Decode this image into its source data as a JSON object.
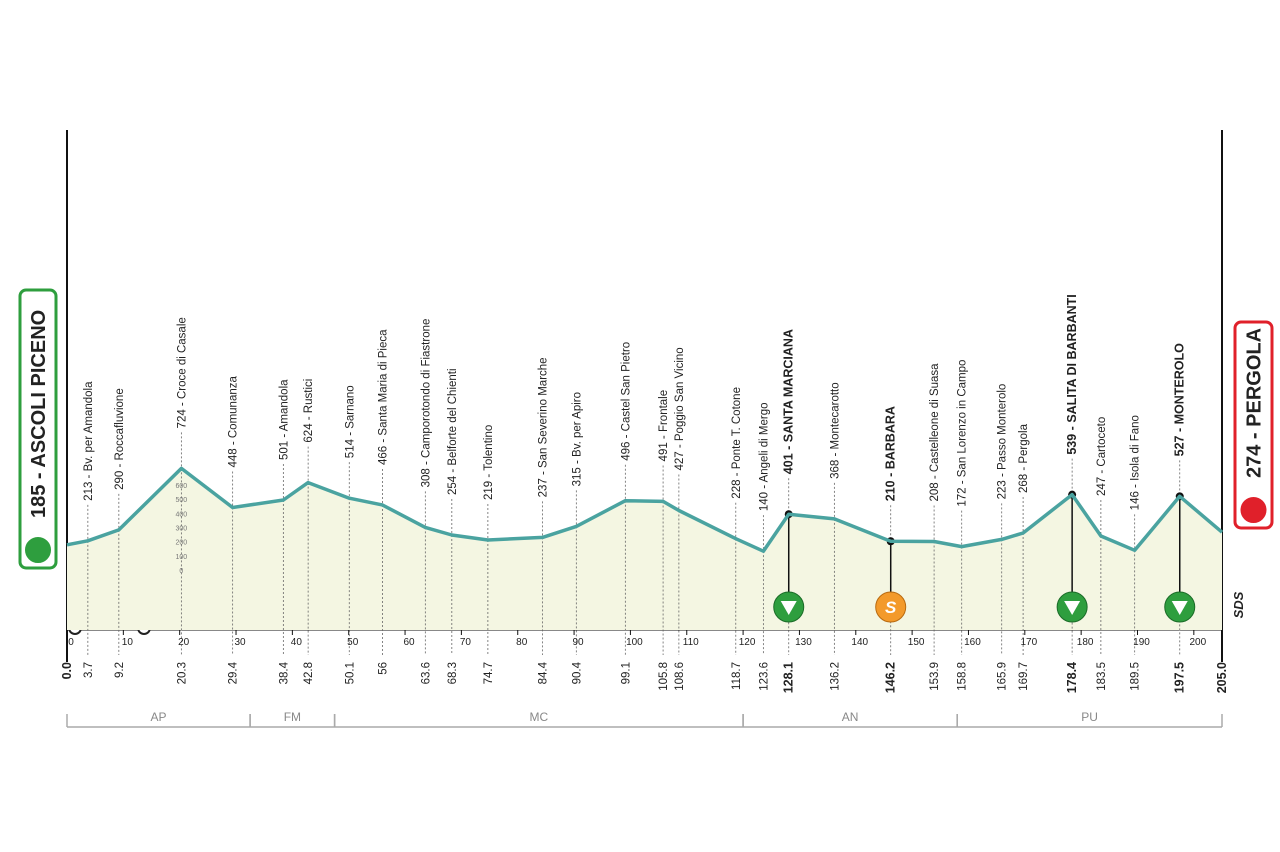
{
  "chart_data": {
    "type": "profile",
    "xlim": [
      0,
      205
    ],
    "ylim": [
      0,
      600
    ],
    "xticks": [
      0,
      10,
      20,
      30,
      40,
      50,
      60,
      70,
      80,
      90,
      100,
      110,
      120,
      130,
      140,
      150,
      160,
      170,
      180,
      190,
      200
    ],
    "yticks": [
      0,
      100,
      200,
      300,
      400,
      500,
      600
    ],
    "line_color": "#4aa3a0",
    "fill_color": "#f4f6e2",
    "start": {
      "label": "185 - ASCOLI PICENO",
      "alt": 185,
      "km": 0,
      "km_label": "0.0",
      "color": "#2e9e3e"
    },
    "finish": {
      "label": "274 - PERGOLA",
      "alt": 274,
      "km": 205,
      "km_label": "205.0",
      "color": "#e0202a"
    },
    "waypoints": [
      {
        "label": "213 - Bv. per Amandola",
        "alt": 213,
        "km": 3.7
      },
      {
        "label": "290 - Roccafluvione",
        "alt": 290,
        "km": 9.2
      },
      {
        "label": "724 - Croce di Casale",
        "alt": 724,
        "km": 20.3
      },
      {
        "label": "448 - Comunanza",
        "alt": 448,
        "km": 29.4
      },
      {
        "label": "501 - Amandola",
        "alt": 501,
        "km": 38.4
      },
      {
        "label": "624 - Rustici",
        "alt": 624,
        "km": 42.8
      },
      {
        "label": "514 - Sarnano",
        "alt": 514,
        "km": 50.1
      },
      {
        "label": "466 - Santa Maria di Pieca",
        "alt": 466,
        "km": 56.0
      },
      {
        "label": "308 - Camporotondo di Fiastrone",
        "alt": 308,
        "km": 63.6
      },
      {
        "label": "254 - Belforte del Chienti",
        "alt": 254,
        "km": 68.3
      },
      {
        "label": "219 - Tolentino",
        "alt": 219,
        "km": 74.7
      },
      {
        "label": "237 - San Severino Marche",
        "alt": 237,
        "km": 84.4
      },
      {
        "label": "315 - Bv. per Apiro",
        "alt": 315,
        "km": 90.4
      },
      {
        "label": "496 - Castel San Pietro",
        "alt": 496,
        "km": 99.1
      },
      {
        "label": "491 - Frontale",
        "alt": 491,
        "km": 105.8
      },
      {
        "label": "427 - Poggio San Vicino",
        "alt": 427,
        "km": 108.6
      },
      {
        "label": "228 - Ponte T. Cotone",
        "alt": 228,
        "km": 118.7
      },
      {
        "label": "140 - Angeli di Mergo",
        "alt": 140,
        "km": 123.6
      },
      {
        "label": "401 - SANTA MARCIANA",
        "alt": 401,
        "km": 128.1,
        "kind": "gpm"
      },
      {
        "label": "368 - Montecarotto",
        "alt": 368,
        "km": 136.2
      },
      {
        "label": "210 - BARBARA",
        "alt": 210,
        "km": 146.2,
        "kind": "sprint"
      },
      {
        "label": "208 - Castelleone di Suasa",
        "alt": 208,
        "km": 153.9
      },
      {
        "label": "172 - San Lorenzo in Campo",
        "alt": 172,
        "km": 158.8
      },
      {
        "label": "223 - Passo Monterolo",
        "alt": 223,
        "km": 165.9
      },
      {
        "label": "268 - Pergola",
        "alt": 268,
        "km": 169.7
      },
      {
        "label": "539 - SALITA DI BARBANTI",
        "alt": 539,
        "km": 178.4,
        "kind": "gpm"
      },
      {
        "label": "247 - Cartoceto",
        "alt": 247,
        "km": 183.5
      },
      {
        "label": "146 - Isola di Fano",
        "alt": 146,
        "km": 189.5
      },
      {
        "label": "527 - MONTEROLO",
        "alt": 527,
        "km": 197.5,
        "kind": "gpm"
      }
    ],
    "sprint_symbol": "S",
    "provinces": [
      {
        "label": "AP",
        "from": 0,
        "to": 32.5
      },
      {
        "label": "FM",
        "from": 32.5,
        "to": 47.5
      },
      {
        "label": "MC",
        "from": 47.5,
        "to": 120
      },
      {
        "label": "AN",
        "from": 120,
        "to": 158
      },
      {
        "label": "PU",
        "from": 158,
        "to": 205
      }
    ],
    "logo": "SDS"
  }
}
